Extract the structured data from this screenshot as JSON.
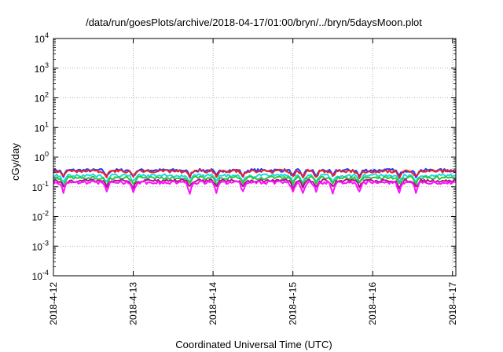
{
  "chart_data": {
    "type": "line",
    "title": "/data/run/goesPlots/archive/2018-04-17/01:00/bryn/../bryn/5daysMoon.plot",
    "xlabel": "Coordinated Universal Time (UTC)",
    "ylabel": "cGy/day",
    "x_range": [
      "2018-04-12T00:00",
      "2018-04-17T01:00"
    ],
    "x_ticks": [
      "2018-4-12",
      "2018-4-13",
      "2018-4-14",
      "2018-4-15",
      "2018-4-16",
      "2018-4-17"
    ],
    "y_scale": "log",
    "ylim": [
      0.0001,
      10000
    ],
    "y_ticks": [
      {
        "base": "10",
        "exp": "-4"
      },
      {
        "base": "10",
        "exp": "-3"
      },
      {
        "base": "10",
        "exp": "-2"
      },
      {
        "base": "10",
        "exp": "-1"
      },
      {
        "base": "10",
        "exp": "0"
      },
      {
        "base": "10",
        "exp": "1"
      },
      {
        "base": "10",
        "exp": "2"
      },
      {
        "base": "10",
        "exp": "3"
      },
      {
        "base": "10",
        "exp": "4"
      }
    ],
    "grid": true,
    "dip_dates": [
      "2018-04-12T03:00",
      "2018-04-12T16:00",
      "2018-04-13T00:00",
      "2018-04-13T17:00",
      "2018-04-14T01:00",
      "2018-04-14T09:00",
      "2018-04-15T00:00",
      "2018-04-15T03:00",
      "2018-04-15T07:00",
      "2018-04-15T12:00",
      "2018-04-15T20:00",
      "2018-04-16T08:00",
      "2018-04-16T13:00"
    ],
    "series": [
      {
        "color": "#2a3cff",
        "baseline": 0.36,
        "dip_factor": 0.62
      },
      {
        "color": "#e8242a",
        "baseline": 0.34,
        "dip_factor": 0.64
      },
      {
        "color": "#20d8e0",
        "baseline": 0.24,
        "dip_factor": 0.6
      },
      {
        "color": "#28c83c",
        "baseline": 0.2,
        "dip_factor": 0.62
      },
      {
        "color": "#b0108c",
        "baseline": 0.16,
        "dip_factor": 0.6
      },
      {
        "color": "#ff10ff",
        "baseline": 0.14,
        "dip_factor": 0.45
      }
    ]
  }
}
